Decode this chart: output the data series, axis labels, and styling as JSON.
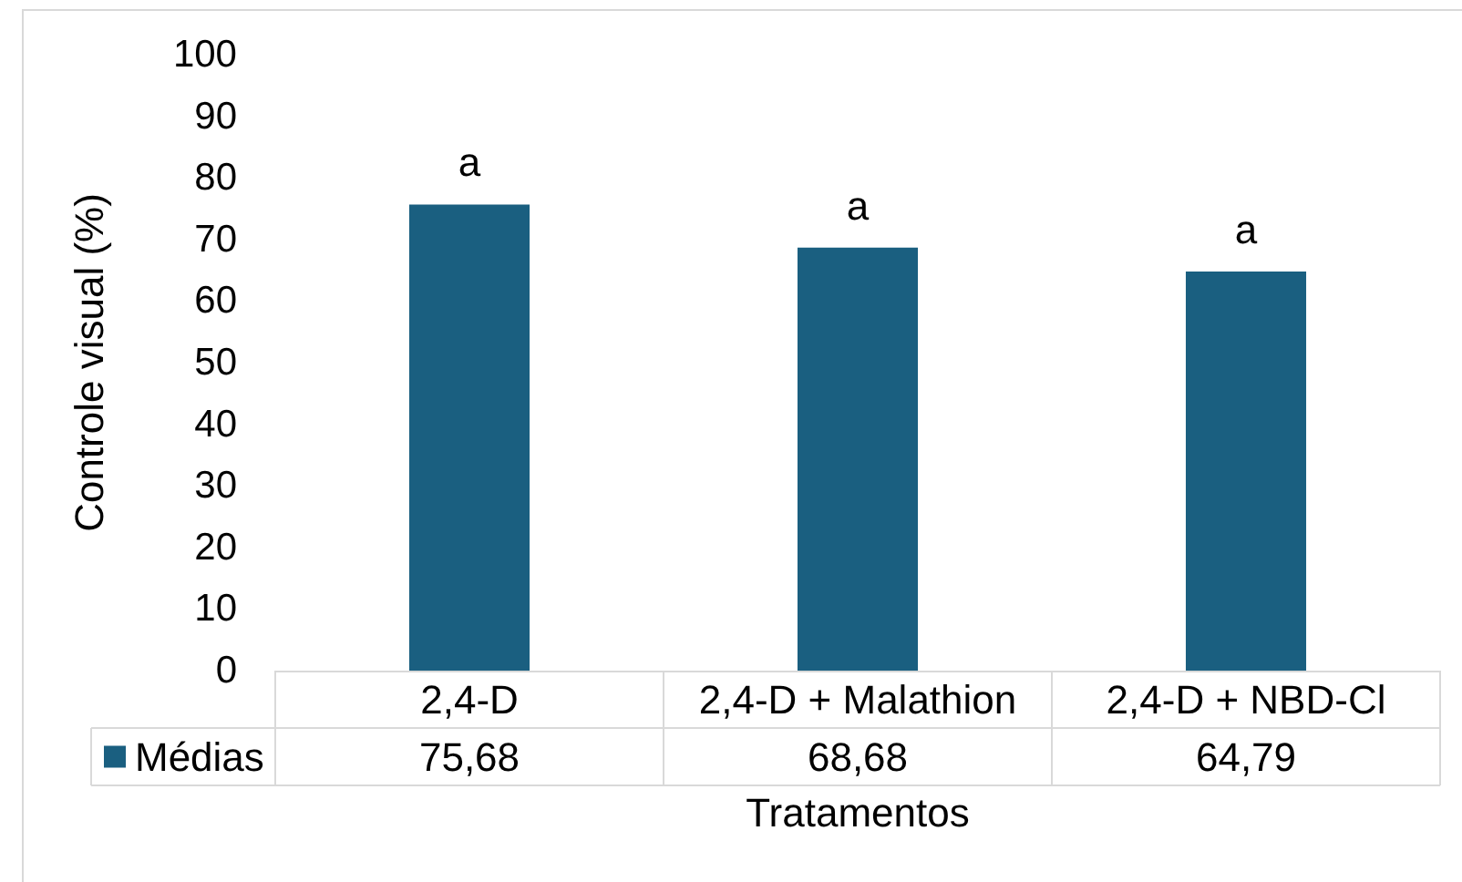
{
  "chart_data": {
    "type": "bar",
    "xlabel": "Tratamentos",
    "ylabel": "Controle visual (%)",
    "categories": [
      "2,4-D",
      "2,4-D + Malathion",
      "2,4-D + NBD-Cl"
    ],
    "series": [
      {
        "name": "Médias",
        "color": "#1a5f80",
        "values": [
          75.68,
          68.68,
          64.79
        ],
        "value_labels": [
          "75,68",
          "68,68",
          "64,79"
        ]
      }
    ],
    "ylim": [
      0,
      100
    ],
    "yticks": [
      0,
      10,
      20,
      30,
      40,
      50,
      60,
      70,
      80,
      90,
      100
    ],
    "legend": "bottom left",
    "annotations": [
      {
        "text": "a",
        "x": "2,4-D",
        "y": 75.68
      },
      {
        "text": "a",
        "x": "2,4-D + Malathion",
        "y": 68.68
      },
      {
        "text": "a",
        "x": "2,4-D + NBD-Cl",
        "y": 64.79
      }
    ]
  }
}
